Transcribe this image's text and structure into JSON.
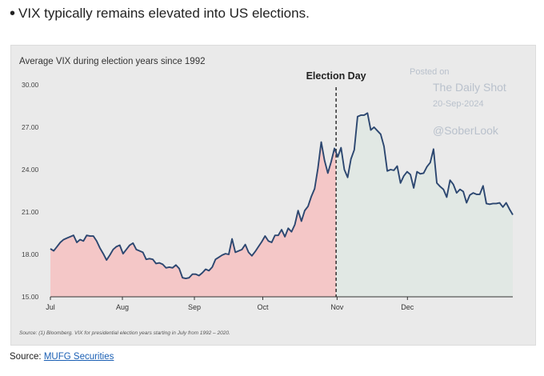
{
  "headline": {
    "bullet": "•",
    "text": "VIX typically remains elevated into US elections."
  },
  "watermark": {
    "posted": "Posted on",
    "name": "The Daily Shot",
    "date": "20-Sep-2024",
    "handle": "@SoberLook"
  },
  "footer": {
    "label": "Source:",
    "link_text": "MUFG Securities"
  },
  "colors": {
    "line": "#2c4770",
    "pre_election_fill": "#f4c7c7",
    "post_election_fill": "#e1e8e4",
    "background": "#eaeaea",
    "axis": "#333333"
  },
  "chart_data": {
    "type": "area",
    "title": "Average VIX during election years since 1992",
    "source_note": "Source: (1) Bloomberg. VIX for presidential election years starting in July from 1992 – 2020.",
    "xlabel": "",
    "ylabel": "",
    "ylim": [
      15,
      30
    ],
    "yticks": [
      "15.00",
      "18.00",
      "21.00",
      "24.00",
      "27.00",
      "30.00"
    ],
    "grid": false,
    "legend": "none",
    "x_month_ticks": [
      {
        "label": "Jul",
        "day": 0
      },
      {
        "label": "Aug",
        "day": 21.8
      },
      {
        "label": "Sep",
        "day": 43.6
      },
      {
        "label": "Oct",
        "day": 64.3
      },
      {
        "label": "Nov",
        "day": 86.8
      },
      {
        "label": "Dec",
        "day": 108.1
      }
    ],
    "event_marker": {
      "label": "Election Day",
      "day": 86.5
    },
    "series": [
      {
        "points": [
          [
            0,
            18.4
          ],
          [
            1,
            18.25
          ],
          [
            2,
            18.55
          ],
          [
            3,
            18.85
          ],
          [
            4,
            19.05
          ],
          [
            5,
            19.15
          ],
          [
            6,
            19.25
          ],
          [
            7,
            19.35
          ],
          [
            8,
            18.85
          ],
          [
            9,
            19.05
          ],
          [
            10,
            18.95
          ],
          [
            11,
            19.35
          ],
          [
            12,
            19.3
          ],
          [
            13,
            19.3
          ],
          [
            14,
            18.95
          ],
          [
            15,
            18.45
          ],
          [
            16,
            18.05
          ],
          [
            17,
            17.6
          ],
          [
            18,
            17.95
          ],
          [
            19,
            18.35
          ],
          [
            20,
            18.55
          ],
          [
            21,
            18.65
          ],
          [
            22,
            18.05
          ],
          [
            23,
            18.35
          ],
          [
            24,
            18.65
          ],
          [
            25,
            18.8
          ],
          [
            26,
            18.35
          ],
          [
            27,
            18.25
          ],
          [
            28,
            18.15
          ],
          [
            29,
            17.65
          ],
          [
            30,
            17.7
          ],
          [
            31,
            17.65
          ],
          [
            32,
            17.35
          ],
          [
            33,
            17.4
          ],
          [
            34,
            17.3
          ],
          [
            35,
            17.05
          ],
          [
            36,
            17.1
          ],
          [
            37,
            17.05
          ],
          [
            38,
            17.25
          ],
          [
            39,
            17.0
          ],
          [
            40,
            16.35
          ],
          [
            41,
            16.3
          ],
          [
            42,
            16.35
          ],
          [
            43,
            16.6
          ],
          [
            44,
            16.6
          ],
          [
            45,
            16.5
          ],
          [
            46,
            16.7
          ],
          [
            47,
            16.95
          ],
          [
            48,
            16.85
          ],
          [
            49,
            17.1
          ],
          [
            50,
            17.65
          ],
          [
            51,
            17.8
          ],
          [
            52,
            17.95
          ],
          [
            53,
            18.05
          ],
          [
            54,
            18.0
          ],
          [
            55,
            19.1
          ],
          [
            56,
            18.15
          ],
          [
            57,
            18.25
          ],
          [
            58,
            18.35
          ],
          [
            59,
            18.7
          ],
          [
            60,
            18.15
          ],
          [
            61,
            17.9
          ],
          [
            62,
            18.2
          ],
          [
            63,
            18.55
          ],
          [
            64,
            18.9
          ],
          [
            65,
            19.3
          ],
          [
            66,
            18.95
          ],
          [
            67,
            18.85
          ],
          [
            68,
            19.35
          ],
          [
            69,
            19.35
          ],
          [
            70,
            19.75
          ],
          [
            71,
            19.25
          ],
          [
            72,
            19.85
          ],
          [
            73,
            19.6
          ],
          [
            74,
            20.1
          ],
          [
            75,
            21.1
          ],
          [
            76,
            20.35
          ],
          [
            77,
            21.1
          ],
          [
            78,
            21.4
          ],
          [
            79,
            22.1
          ],
          [
            80,
            22.65
          ],
          [
            81,
            24.1
          ],
          [
            82,
            25.95
          ],
          [
            83,
            24.65
          ],
          [
            84,
            23.75
          ],
          [
            85,
            24.55
          ],
          [
            86,
            25.5
          ],
          [
            87,
            24.9
          ],
          [
            88,
            25.55
          ],
          [
            89,
            24.0
          ],
          [
            90,
            23.45
          ],
          [
            91,
            24.75
          ],
          [
            92,
            25.4
          ],
          [
            93,
            27.75
          ],
          [
            94,
            27.85
          ],
          [
            95,
            27.85
          ],
          [
            96,
            28.0
          ],
          [
            97,
            26.8
          ],
          [
            98,
            27.0
          ],
          [
            99,
            26.75
          ],
          [
            100,
            26.5
          ],
          [
            101,
            25.65
          ],
          [
            102,
            23.9
          ],
          [
            103,
            24.0
          ],
          [
            104,
            23.95
          ],
          [
            105,
            24.25
          ],
          [
            106,
            23.05
          ],
          [
            107,
            23.55
          ],
          [
            108,
            23.85
          ],
          [
            109,
            23.65
          ],
          [
            110,
            22.7
          ],
          [
            111,
            23.85
          ],
          [
            112,
            23.7
          ],
          [
            113,
            23.75
          ],
          [
            114,
            24.2
          ],
          [
            115,
            24.5
          ],
          [
            116,
            25.45
          ],
          [
            117,
            23.05
          ],
          [
            118,
            22.8
          ],
          [
            119,
            22.6
          ],
          [
            120,
            22.05
          ],
          [
            121,
            23.25
          ],
          [
            122,
            22.95
          ],
          [
            123,
            22.35
          ],
          [
            124,
            22.6
          ],
          [
            125,
            22.45
          ],
          [
            126,
            21.65
          ],
          [
            127,
            22.2
          ],
          [
            128,
            22.35
          ],
          [
            129,
            22.25
          ],
          [
            130,
            22.25
          ],
          [
            131,
            22.85
          ],
          [
            132,
            21.6
          ],
          [
            133,
            21.55
          ],
          [
            134,
            21.6
          ],
          [
            135,
            21.6
          ],
          [
            136,
            21.65
          ],
          [
            137,
            21.35
          ],
          [
            138,
            21.65
          ],
          [
            139,
            21.2
          ],
          [
            140,
            20.8
          ]
        ]
      }
    ]
  }
}
